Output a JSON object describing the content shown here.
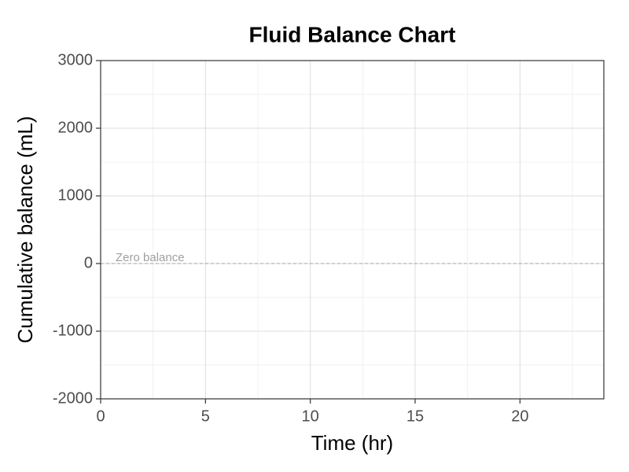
{
  "chart_data": {
    "type": "line",
    "title": "Fluid Balance Chart",
    "x_label": "Time (hr)",
    "y_label": "Cumulative balance (mL)",
    "xlim": [
      0,
      24
    ],
    "xticks": [
      0,
      5,
      10,
      15,
      20
    ],
    "ylim": [
      -2000,
      3000
    ],
    "yticks": [
      -2000,
      -1000,
      0,
      1000,
      2000,
      3000
    ],
    "grid": true,
    "reference_line": {
      "y": 0,
      "label": "Zero balance",
      "color": "#a0a0a0"
    }
  }
}
